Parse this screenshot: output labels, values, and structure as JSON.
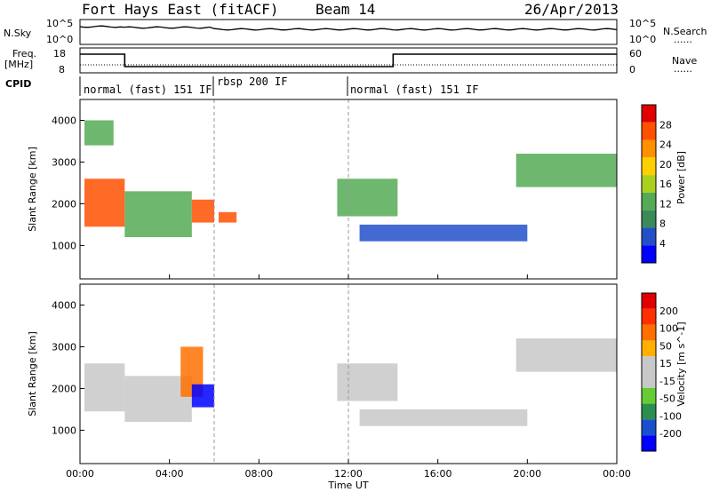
{
  "header": {
    "title": "Fort Hays East (fitACF)",
    "beam": "Beam 14",
    "date": "26/Apr/2013"
  },
  "strip_labels": {
    "nsky": "N.Sky",
    "nsearch": "N.Search",
    "freq": "Freq.",
    "freq_unit": "[MHz]",
    "nave": "Nave",
    "cpid": "CPID",
    "nsky_ticks": [
      "10^5",
      "10^0"
    ],
    "nsearch_ticks": [
      "10^5",
      "10^0"
    ],
    "freq_ticks": [
      "18",
      "8"
    ],
    "nave_ticks": [
      "60",
      "0"
    ],
    "dots": "......"
  },
  "cpid_modes": [
    "normal (fast) 151 IF",
    "rbsp 200 IF",
    "normal (fast) 151 IF"
  ],
  "colors": {
    "power": [
      "#0000ff",
      "#2250c8",
      "#3a8a5a",
      "#55aa55",
      "#aad020",
      "#ffd000",
      "#ff9000",
      "#ff5000",
      "#e00000"
    ],
    "velocity": [
      "#0000ff",
      "#1a50d0",
      "#2a9050",
      "#66cc33",
      "#c8c8c8",
      "#c8c8c8",
      "#ffb000",
      "#ff7000",
      "#ff3000",
      "#e00000"
    ]
  },
  "chart_data": [
    {
      "type": "heatmap",
      "name": "power",
      "ylabel": "Slant Range [km]",
      "xlabel": "",
      "y_ticks": [
        "1000",
        "2000",
        "3000",
        "4000"
      ],
      "ylim": [
        200,
        4500
      ],
      "colorbar_label": "Power [dB]",
      "colorbar_ticks": [
        "4",
        "8",
        "12",
        "16",
        "20",
        "24",
        "28"
      ],
      "x_ticks": [
        "00:00",
        "04:00",
        "08:00",
        "12:00",
        "16:00",
        "20:00",
        "00:00"
      ],
      "xlim": [
        0,
        24
      ],
      "regions": [
        {
          "t0": 0.2,
          "t1": 2.0,
          "r0": 1450,
          "r1": 2600,
          "level": "high"
        },
        {
          "t0": 0.2,
          "t1": 1.5,
          "r0": 3400,
          "r1": 4000,
          "level": "mid"
        },
        {
          "t0": 2.0,
          "t1": 5.0,
          "r0": 1200,
          "r1": 2300,
          "level": "mid"
        },
        {
          "t0": 5.0,
          "t1": 6.0,
          "r0": 1550,
          "r1": 2100,
          "level": "high"
        },
        {
          "t0": 6.2,
          "t1": 7.0,
          "r0": 1550,
          "r1": 1800,
          "level": "high"
        },
        {
          "t0": 11.5,
          "t1": 14.2,
          "r0": 1700,
          "r1": 2600,
          "level": "mid"
        },
        {
          "t0": 12.5,
          "t1": 20.0,
          "r0": 1100,
          "r1": 1500,
          "level": "low"
        },
        {
          "t0": 19.5,
          "t1": 24.0,
          "r0": 2400,
          "r1": 3200,
          "level": "mid"
        }
      ]
    },
    {
      "type": "heatmap",
      "name": "velocity",
      "ylabel": "Slant Range [km]",
      "xlabel": "Time UT",
      "y_ticks": [
        "1000",
        "2000",
        "3000",
        "4000"
      ],
      "ylim": [
        200,
        4500
      ],
      "colorbar_label": "Velocity [m s^-1]",
      "colorbar_ticks": [
        "200",
        "100",
        "50",
        "15",
        "-15",
        "-50",
        "-100",
        "-200"
      ],
      "x_ticks": [
        "00:00",
        "04:00",
        "08:00",
        "12:00",
        "16:00",
        "20:00",
        "00:00"
      ],
      "xlim": [
        0,
        24
      ],
      "regions": [
        {
          "t0": 0.2,
          "t1": 2.0,
          "r0": 1450,
          "r1": 2600,
          "level": "gray"
        },
        {
          "t0": 2.0,
          "t1": 5.0,
          "r0": 1200,
          "r1": 2300,
          "level": "gray"
        },
        {
          "t0": 4.5,
          "t1": 5.5,
          "r0": 1800,
          "r1": 3000,
          "level": "orange"
        },
        {
          "t0": 5.0,
          "t1": 6.0,
          "r0": 1550,
          "r1": 2100,
          "level": "blue"
        },
        {
          "t0": 11.5,
          "t1": 14.2,
          "r0": 1700,
          "r1": 2600,
          "level": "gray"
        },
        {
          "t0": 12.5,
          "t1": 20.0,
          "r0": 1100,
          "r1": 1500,
          "level": "gray"
        },
        {
          "t0": 19.5,
          "t1": 24.0,
          "r0": 2400,
          "r1": 3200,
          "level": "gray"
        }
      ]
    }
  ]
}
